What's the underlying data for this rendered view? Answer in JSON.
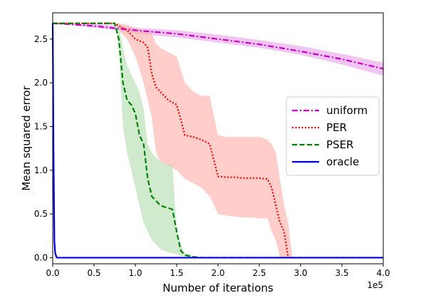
{
  "chart_data": {
    "type": "line",
    "xlabel": "Number of iterations",
    "ylabel": "Mean squared error",
    "x_scale_label": "1e5",
    "xlim": [
      0,
      400000
    ],
    "ylim": [
      -0.07,
      2.8
    ],
    "xticks": [
      0,
      50000,
      100000,
      150000,
      200000,
      250000,
      300000,
      350000,
      400000
    ],
    "xtick_labels": [
      "0.0",
      "0.5",
      "1.0",
      "1.5",
      "2.0",
      "2.5",
      "3.0",
      "3.5",
      "4.0"
    ],
    "yticks": [
      0.0,
      0.5,
      1.0,
      1.5,
      2.0,
      2.5
    ],
    "ytick_labels": [
      "0.0",
      "0.5",
      "1.0",
      "1.5",
      "2.0",
      "2.5"
    ],
    "grid": false,
    "legend_position": "center-right",
    "series": [
      {
        "name": "uniform",
        "color": "#cc00cc",
        "band_color": "#e9a6ea",
        "style": "dashdot",
        "x": [
          0,
          20000,
          50000,
          70000,
          90000,
          100000,
          150000,
          200000,
          250000,
          300000,
          350000,
          400000
        ],
        "y": [
          2.68,
          2.67,
          2.65,
          2.63,
          2.61,
          2.6,
          2.56,
          2.5,
          2.44,
          2.36,
          2.27,
          2.16
        ],
        "band_low": [
          2.68,
          2.66,
          2.63,
          2.61,
          2.58,
          2.56,
          2.52,
          2.46,
          2.4,
          2.32,
          2.21,
          2.08
        ],
        "band_high": [
          2.68,
          2.68,
          2.67,
          2.66,
          2.64,
          2.63,
          2.6,
          2.55,
          2.49,
          2.42,
          2.33,
          2.23
        ]
      },
      {
        "name": "PER",
        "color": "#ff0000",
        "band_color": "#ffb3ad",
        "style": "dotted",
        "x": [
          0,
          75000,
          80000,
          90000,
          100000,
          110000,
          115000,
          120000,
          125000,
          130000,
          140000,
          150000,
          160000,
          170000,
          180000,
          190000,
          200000,
          210000,
          220000,
          230000,
          240000,
          250000,
          260000,
          265000,
          270000,
          275000,
          280000,
          285000,
          290000,
          300000,
          400000
        ],
        "y": [
          2.68,
          2.68,
          2.65,
          2.6,
          2.5,
          2.46,
          2.4,
          2.1,
          1.95,
          1.9,
          1.8,
          1.75,
          1.4,
          1.38,
          1.35,
          1.3,
          0.93,
          0.92,
          0.92,
          0.91,
          0.91,
          0.91,
          0.9,
          0.8,
          0.6,
          0.4,
          0.3,
          0.0,
          0.0,
          0.0,
          0.0
        ],
        "band_low": [
          2.68,
          2.68,
          2.6,
          2.5,
          2.3,
          2.0,
          1.8,
          1.6,
          1.2,
          1.1,
          1.05,
          1.0,
          0.9,
          0.85,
          0.8,
          0.7,
          0.5,
          0.48,
          0.47,
          0.46,
          0.46,
          0.45,
          0.45,
          0.3,
          0.2,
          0.0,
          0.0,
          0.0,
          0.0,
          0.0,
          0.0
        ],
        "band_high": [
          2.68,
          2.68,
          2.68,
          2.66,
          2.63,
          2.6,
          2.58,
          2.56,
          2.45,
          2.4,
          2.35,
          2.3,
          2.0,
          1.9,
          1.85,
          1.85,
          1.4,
          1.38,
          1.38,
          1.38,
          1.38,
          1.38,
          1.35,
          1.3,
          1.2,
          0.9,
          0.6,
          0.4,
          0.0,
          0.0,
          0.0
        ]
      },
      {
        "name": "PSER",
        "color": "#008000",
        "band_color": "#b7dfb3",
        "style": "dashed",
        "x": [
          0,
          75000,
          80000,
          85000,
          90000,
          95000,
          100000,
          105000,
          110000,
          115000,
          120000,
          125000,
          130000,
          135000,
          140000,
          145000,
          150000,
          155000,
          160000,
          170000,
          180000,
          200000,
          400000
        ],
        "y": [
          2.68,
          2.68,
          2.5,
          2.0,
          1.8,
          1.75,
          1.65,
          1.4,
          1.3,
          0.9,
          0.7,
          0.65,
          0.6,
          0.58,
          0.57,
          0.55,
          0.3,
          0.08,
          0.03,
          0.01,
          0.0,
          0.0,
          0.0
        ],
        "band_low": [
          2.68,
          2.68,
          2.4,
          1.5,
          1.2,
          1.0,
          0.8,
          0.6,
          0.4,
          0.3,
          0.2,
          0.15,
          0.1,
          0.08,
          0.06,
          0.05,
          0.04,
          0.02,
          0.01,
          0.0,
          0.0,
          0.0,
          0.0
        ],
        "band_high": [
          2.68,
          2.68,
          2.65,
          2.4,
          2.2,
          2.1,
          2.0,
          1.9,
          1.7,
          1.3,
          1.2,
          1.15,
          1.1,
          1.08,
          1.07,
          1.06,
          0.3,
          0.15,
          0.05,
          0.02,
          0.0,
          0.0,
          0.0
        ]
      },
      {
        "name": "oracle",
        "color": "#0000dd",
        "band_color": "#9999ff",
        "style": "solid",
        "x": [
          0,
          1000,
          2000,
          3000,
          5000,
          20000,
          400000
        ],
        "y": [
          2.68,
          1.2,
          0.2,
          0.05,
          0.0,
          0.0,
          0.0
        ],
        "band_low": [
          2.68,
          1.0,
          0.1,
          0.0,
          0.0,
          0.0,
          0.0
        ],
        "band_high": [
          2.68,
          1.5,
          0.3,
          0.1,
          0.0,
          0.0,
          0.0
        ]
      }
    ]
  }
}
